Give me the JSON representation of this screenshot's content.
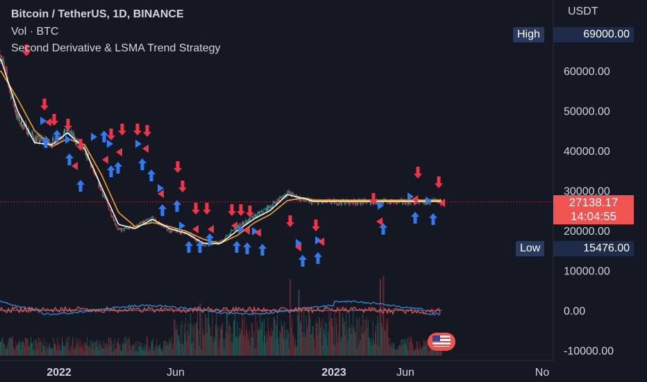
{
  "legend": {
    "title": "Bitcoin / TetherUS, 1D, BINANCE",
    "volume": "Vol · BTC",
    "strategy": "Second Derivative & LSMA Trend Strategy"
  },
  "price_axis": {
    "currency": "USDT",
    "high_label": "High",
    "high_value": "69000.00",
    "low_label": "Low",
    "low_value": "15476.00",
    "last_price": "27138.17",
    "countdown": "14:04:55"
  },
  "colors": {
    "background": "#141823",
    "up_candle": "#26a69a",
    "down_candle": "#ef5350",
    "lsma_fast": "#ffffff",
    "lsma_slow": "#f5a623",
    "buy_marker": "#2f7bf5",
    "sell_marker": "#f0354a",
    "osc_line_1": "#2196f3",
    "osc_line_2": "#ef5350"
  },
  "chart_data": {
    "type": "line",
    "symbol": "Bitcoin / TetherUS",
    "timeframe": "1D",
    "exchange": "BINANCE",
    "x_tick_labels": [
      "2022",
      "Jun",
      "2023",
      "Jun",
      "No"
    ],
    "x_tick_bold": [
      true,
      false,
      true,
      false,
      false
    ],
    "x": [
      "2021-11-15",
      "2021-12-15",
      "2022-01-15",
      "2022-02-15",
      "2022-03-15",
      "2022-04-15",
      "2022-05-15",
      "2022-06-15",
      "2022-07-15",
      "2022-08-15",
      "2022-09-15",
      "2022-10-15",
      "2022-11-15",
      "2022-12-15",
      "2023-01-15",
      "2023-02-15",
      "2023-03-15",
      "2023-04-15",
      "2023-05-15",
      "2023-06-01"
    ],
    "price": [
      64000,
      48000,
      43000,
      42000,
      45000,
      40000,
      30000,
      20000,
      21000,
      23000,
      20000,
      19500,
      16500,
      17000,
      21000,
      23500,
      26000,
      29500,
      27500,
      27138
    ],
    "lsma_fast": [
      63000,
      50000,
      42000,
      41500,
      44500,
      40500,
      31000,
      21500,
      20500,
      22800,
      20500,
      19300,
      16800,
      16700,
      20000,
      23000,
      25000,
      29000,
      28000,
      27300
    ],
    "lsma_slow": [
      60000,
      53000,
      45000,
      41000,
      43000,
      41500,
      34000,
      24500,
      21000,
      22000,
      21000,
      19800,
      17800,
      16800,
      18800,
      22000,
      24000,
      27500,
      28200,
      27600
    ],
    "y_tick_labels": [
      "60000.00",
      "50000.00",
      "40000.00",
      "30000.00",
      "20000.00",
      "10000.00",
      "0.00",
      "-10000.00"
    ],
    "ylim": [
      -11000,
      71000
    ],
    "high": 69000,
    "low": 15476,
    "last": 27138.17,
    "grid": false,
    "legend_placement": "top-left"
  }
}
